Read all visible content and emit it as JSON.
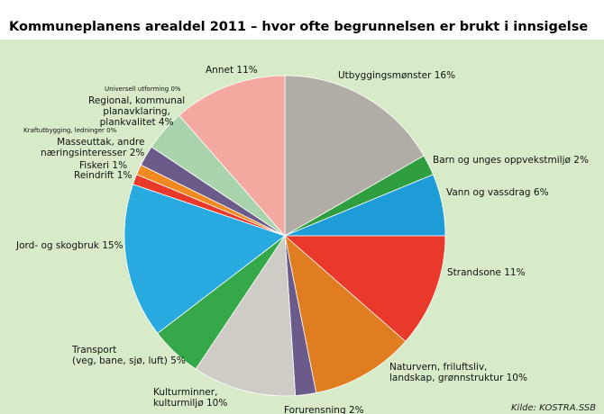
{
  "chart_data": {
    "type": "pie",
    "title": "Kommuneplanens arealdel 2011 – hvor ofte begrunnelsen er brukt i innsigelse",
    "source": "Kilde: KOSTRA.SSB",
    "categories": [
      "Utbyggingsmønster",
      "Barn og unges oppvekstmiljø",
      "Vann og vassdrag",
      "Strandsone",
      "Naturvern, friluftsliv,\nlandskap, grønnstruktur",
      "Forurensning",
      "Kulturminner,\nkulturmiljø",
      "Transport\n(veg, bane, sjø, luft)",
      "Jord- og skogbruk",
      "Reindrift",
      "Fiskeri",
      "Masseuttak, andre\nnæringsinteresser",
      "Kraftutbygging, ledninger",
      "Regional, kommunal\nplanavklaring,\nplankvalitet",
      "Universell utforming",
      "Annet"
    ],
    "values": [
      16,
      2,
      6,
      11,
      10,
      2,
      10,
      5,
      15,
      1,
      1,
      2,
      0,
      4,
      0,
      11
    ],
    "value_labels": [
      "16%",
      "2%",
      "6%",
      "11%",
      "10%",
      "2%",
      "10%",
      "5%",
      "15%",
      "1%",
      "1%",
      "2%",
      "0%",
      "4%",
      "0%",
      "11%"
    ],
    "colors": [
      "#b1aca5",
      "#2f9e3e",
      "#1e9cd7",
      "#e8392a",
      "#e07d20",
      "#6b5b8a",
      "#cfcbc5",
      "#35a84a",
      "#28aae1",
      "#e8392a",
      "#f08a20",
      "#6b5b8a",
      "#cccccc",
      "#a9d3ab",
      "#7ec8e8",
      "#f4a9a0"
    ]
  }
}
